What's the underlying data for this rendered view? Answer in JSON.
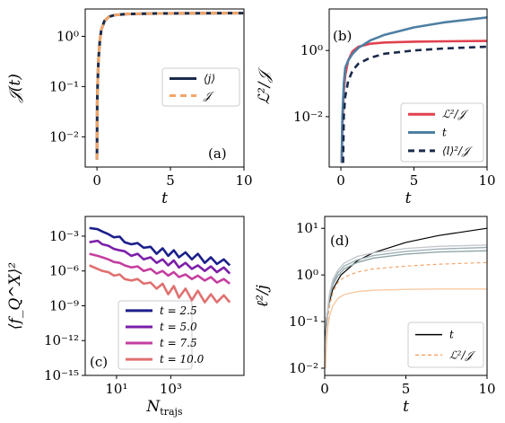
{
  "chart_data": [
    {
      "panel_tag": "(a)",
      "type": "line",
      "xlabel": "t",
      "ylabel": "𝒥(t)",
      "xlim": [
        -0.8,
        10
      ],
      "ylim": [
        0.0025,
        3.5
      ],
      "yscale": "log",
      "xticks": [
        0,
        5,
        10
      ],
      "xtick_labels": [
        "0",
        "5",
        "10"
      ],
      "yticks": [
        0.01,
        0.1,
        1
      ],
      "ytick_labels": [
        "10⁻²",
        "10⁻¹",
        "10⁰"
      ],
      "legend_position": "center-right",
      "series": [
        {
          "name": "⟨j⟩",
          "color": "#1a2a4a",
          "style": "solid",
          "x": [
            0,
            0.02,
            0.05,
            0.1,
            0.2,
            0.3,
            0.5,
            0.8,
            1.2,
            2,
            4,
            7,
            10
          ],
          "y": [
            0.0035,
            0.05,
            0.12,
            0.35,
            0.85,
            1.35,
            2.0,
            2.45,
            2.65,
            2.78,
            2.85,
            2.88,
            2.9
          ]
        },
        {
          "name": "𝒥",
          "color": "#f2a56a",
          "style": "dashed",
          "x": [
            0,
            0.02,
            0.05,
            0.1,
            0.2,
            0.3,
            0.5,
            0.8,
            1.2,
            2,
            4,
            7,
            10
          ],
          "y": [
            0.0035,
            0.05,
            0.12,
            0.35,
            0.85,
            1.35,
            2.0,
            2.45,
            2.65,
            2.78,
            2.85,
            2.88,
            2.9
          ]
        }
      ]
    },
    {
      "panel_tag": "(b)",
      "type": "line",
      "xlabel": "t",
      "ylabel": "ℒ²/𝒥",
      "xlim": [
        -0.8,
        10
      ],
      "ylim": [
        0.0003,
        18
      ],
      "yscale": "log",
      "xticks": [
        0,
        5,
        10
      ],
      "xtick_labels": [
        "0",
        "5",
        "10"
      ],
      "yticks": [
        0.01,
        1
      ],
      "ytick_labels": [
        "10⁻²",
        "10⁰"
      ],
      "legend_position": "lower-right",
      "series": [
        {
          "name": "ℒ²/𝒥",
          "color": "#e0414f",
          "style": "solid",
          "x": [
            0.05,
            0.1,
            0.2,
            0.3,
            0.5,
            0.8,
            1.2,
            2,
            3,
            5,
            7,
            10
          ],
          "y": [
            0.0004,
            0.005,
            0.06,
            0.18,
            0.5,
            0.95,
            1.3,
            1.6,
            1.75,
            1.85,
            1.9,
            1.95
          ]
        },
        {
          "name": "t",
          "color": "#4e7fa3",
          "style": "solid",
          "x": [
            0.05,
            0.1,
            0.2,
            0.3,
            0.5,
            0.8,
            1.2,
            2,
            3,
            5,
            7,
            10
          ],
          "y": [
            0.0004,
            0.01,
            0.1,
            0.3,
            0.5,
            0.8,
            1.2,
            2,
            3,
            5,
            7,
            10
          ]
        },
        {
          "name": "⟨l⟩²/𝒥",
          "color": "#1a2a4a",
          "style": "dashed",
          "x": [
            0.15,
            0.2,
            0.3,
            0.5,
            0.8,
            1.2,
            2,
            3,
            5,
            7,
            10
          ],
          "y": [
            0.0004,
            0.01,
            0.04,
            0.12,
            0.25,
            0.4,
            0.6,
            0.8,
            1.0,
            1.15,
            1.3
          ]
        }
      ]
    },
    {
      "panel_tag": "(c)",
      "type": "line",
      "xlabel": "N_trajs",
      "ylabel": "⟨f_Q^X⟩²",
      "xscale": "log",
      "yscale": "log",
      "xlim": [
        0.7,
        500000
      ],
      "ylim": [
        1e-15,
        0.05
      ],
      "xticks": [
        10,
        1000
      ],
      "xtick_labels": [
        "10¹",
        "10³"
      ],
      "yticks": [
        1e-15,
        1e-12,
        1e-09,
        1e-06,
        0.001
      ],
      "ytick_labels": [
        "10⁻¹⁵",
        "10⁻¹²",
        "10⁻⁹",
        "10⁻⁶",
        "10⁻³"
      ],
      "legend_position": "lower-center",
      "series": [
        {
          "name": "t = 2.5",
          "color": "#1b1f8a",
          "x": [
            1,
            2,
            3,
            5,
            8,
            13,
            20,
            35,
            60,
            100,
            180,
            300,
            500,
            800,
            1300,
            2000,
            3500,
            6000,
            10000,
            18000,
            30000,
            50000,
            90000,
            150000
          ],
          "y": [
            0.005,
            0.004,
            0.0025,
            0.0015,
            0.0008,
            0.0009,
            0.0003,
            0.0002,
            0.00025,
            0.0001,
            0.00012,
            3e-05,
            9e-05,
            2e-05,
            6e-05,
            1.5e-05,
            4e-05,
            1e-05,
            3e-05,
            5e-06,
            1.5e-05,
            4e-06,
            1e-05,
            3e-06
          ]
        },
        {
          "name": "t = 5.0",
          "color": "#7b1fa8",
          "x": [
            1,
            2,
            3,
            5,
            8,
            13,
            20,
            35,
            60,
            100,
            180,
            300,
            500,
            800,
            1300,
            2000,
            3500,
            6000,
            10000,
            18000,
            30000,
            50000,
            90000,
            150000
          ],
          "y": [
            0.0003,
            0.0004,
            0.0002,
            0.00015,
            8e-05,
            6e-05,
            5e-05,
            2e-05,
            3e-05,
            1e-05,
            1.5e-05,
            5e-06,
            1e-05,
            3e-06,
            8e-06,
            2e-06,
            5e-06,
            1.5e-06,
            3e-06,
            1e-06,
            2.5e-06,
            8e-07,
            2e-06,
            6e-07
          ]
        },
        {
          "name": "t = 7.5",
          "color": "#c43fa0",
          "x": [
            1,
            2,
            3,
            5,
            8,
            13,
            20,
            35,
            60,
            100,
            180,
            300,
            500,
            800,
            1300,
            2000,
            3500,
            6000,
            10000,
            18000,
            30000,
            50000,
            90000,
            150000
          ],
          "y": [
            3e-05,
            2e-05,
            1.5e-05,
            1e-05,
            6e-06,
            5e-06,
            3e-06,
            2e-06,
            2.5e-06,
            1e-06,
            1.5e-06,
            6e-07,
            1e-06,
            4e-07,
            8e-07,
            3e-07,
            5e-07,
            2e-07,
            4e-07,
            1.5e-07,
            3e-07,
            1e-07,
            2e-07,
            8e-08
          ]
        },
        {
          "name": "t = 10.0",
          "color": "#e07070",
          "x": [
            1,
            2,
            3,
            5,
            8,
            13,
            20,
            35,
            60,
            100,
            180,
            300,
            500,
            800,
            1300,
            2000,
            3500,
            6000,
            10000,
            18000,
            30000,
            50000,
            90000,
            150000
          ],
          "y": [
            3e-06,
            1.5e-06,
            1e-06,
            8e-07,
            4e-07,
            5e-07,
            2e-07,
            1.5e-07,
            2e-07,
            8e-08,
            1e-07,
            3e-08,
            8e-08,
            1e-08,
            5e-08,
            5e-09,
            3e-08,
            3e-09,
            2e-08,
            2e-09,
            1e-08,
            2e-09,
            8e-09,
            2e-09
          ]
        }
      ]
    },
    {
      "panel_tag": "(d)",
      "type": "line",
      "xlabel": "t",
      "ylabel": "ℓ²/j",
      "yscale": "log",
      "xlim": [
        0,
        10
      ],
      "ylim": [
        0.007,
        18
      ],
      "xticks": [
        0,
        5,
        10
      ],
      "xtick_labels": [
        "0",
        "5",
        "10"
      ],
      "yticks": [
        0.01,
        0.1,
        1,
        10
      ],
      "ytick_labels": [
        "10⁻²",
        "10⁻¹",
        "10⁰",
        "10¹"
      ],
      "legend_position": "lower-right",
      "series": [
        {
          "name": "t",
          "color": "#000000",
          "style": "solid",
          "legend": true,
          "x": [
            0.02,
            0.05,
            0.1,
            0.2,
            0.5,
            1,
            2,
            3,
            5,
            7,
            10
          ],
          "y": [
            0.02,
            0.05,
            0.1,
            0.2,
            0.5,
            1,
            2,
            3,
            5,
            7,
            10
          ]
        },
        {
          "name": "ℒ²/𝒥",
          "color": "#f2a56a",
          "style": "dashed",
          "legend": true,
          "x": [
            0.05,
            0.1,
            0.2,
            0.3,
            0.5,
            0.8,
            1.2,
            2,
            3,
            5,
            7,
            10
          ],
          "y": [
            0.012,
            0.04,
            0.12,
            0.22,
            0.42,
            0.68,
            0.9,
            1.15,
            1.35,
            1.55,
            1.7,
            1.85
          ]
        },
        {
          "color": "#8fa6a6",
          "style": "solid",
          "legend": false,
          "x": [
            0.05,
            0.1,
            0.2,
            0.3,
            0.5,
            0.8,
            1.2,
            2,
            3,
            5,
            7,
            10
          ],
          "y": [
            0.02,
            0.06,
            0.18,
            0.32,
            0.62,
            0.95,
            1.35,
            1.85,
            2.3,
            2.8,
            3.1,
            3.3
          ]
        },
        {
          "color": "#9fb0b8",
          "style": "solid",
          "legend": false,
          "x": [
            0.05,
            0.1,
            0.2,
            0.3,
            0.5,
            0.8,
            1.2,
            2,
            3,
            5,
            7,
            10
          ],
          "y": [
            0.02,
            0.06,
            0.2,
            0.36,
            0.7,
            1.1,
            1.55,
            2.1,
            2.6,
            3.2,
            3.6,
            3.9
          ]
        },
        {
          "color": "#c4c8cc",
          "style": "solid",
          "legend": false,
          "x": [
            0.05,
            0.1,
            0.2,
            0.3,
            0.5,
            0.8,
            1.2,
            2,
            3,
            5,
            7,
            10
          ],
          "y": [
            0.025,
            0.07,
            0.22,
            0.4,
            0.8,
            1.25,
            1.8,
            2.5,
            3.0,
            3.7,
            4.1,
            4.4
          ]
        },
        {
          "color": "#f7c9a2",
          "style": "solid",
          "legend": false,
          "x": [
            0.05,
            0.1,
            0.2,
            0.3,
            0.5,
            0.8,
            1.2,
            2,
            3,
            5,
            7,
            10
          ],
          "y": [
            0.01,
            0.03,
            0.08,
            0.13,
            0.22,
            0.31,
            0.38,
            0.44,
            0.47,
            0.49,
            0.5,
            0.5
          ]
        }
      ]
    }
  ]
}
